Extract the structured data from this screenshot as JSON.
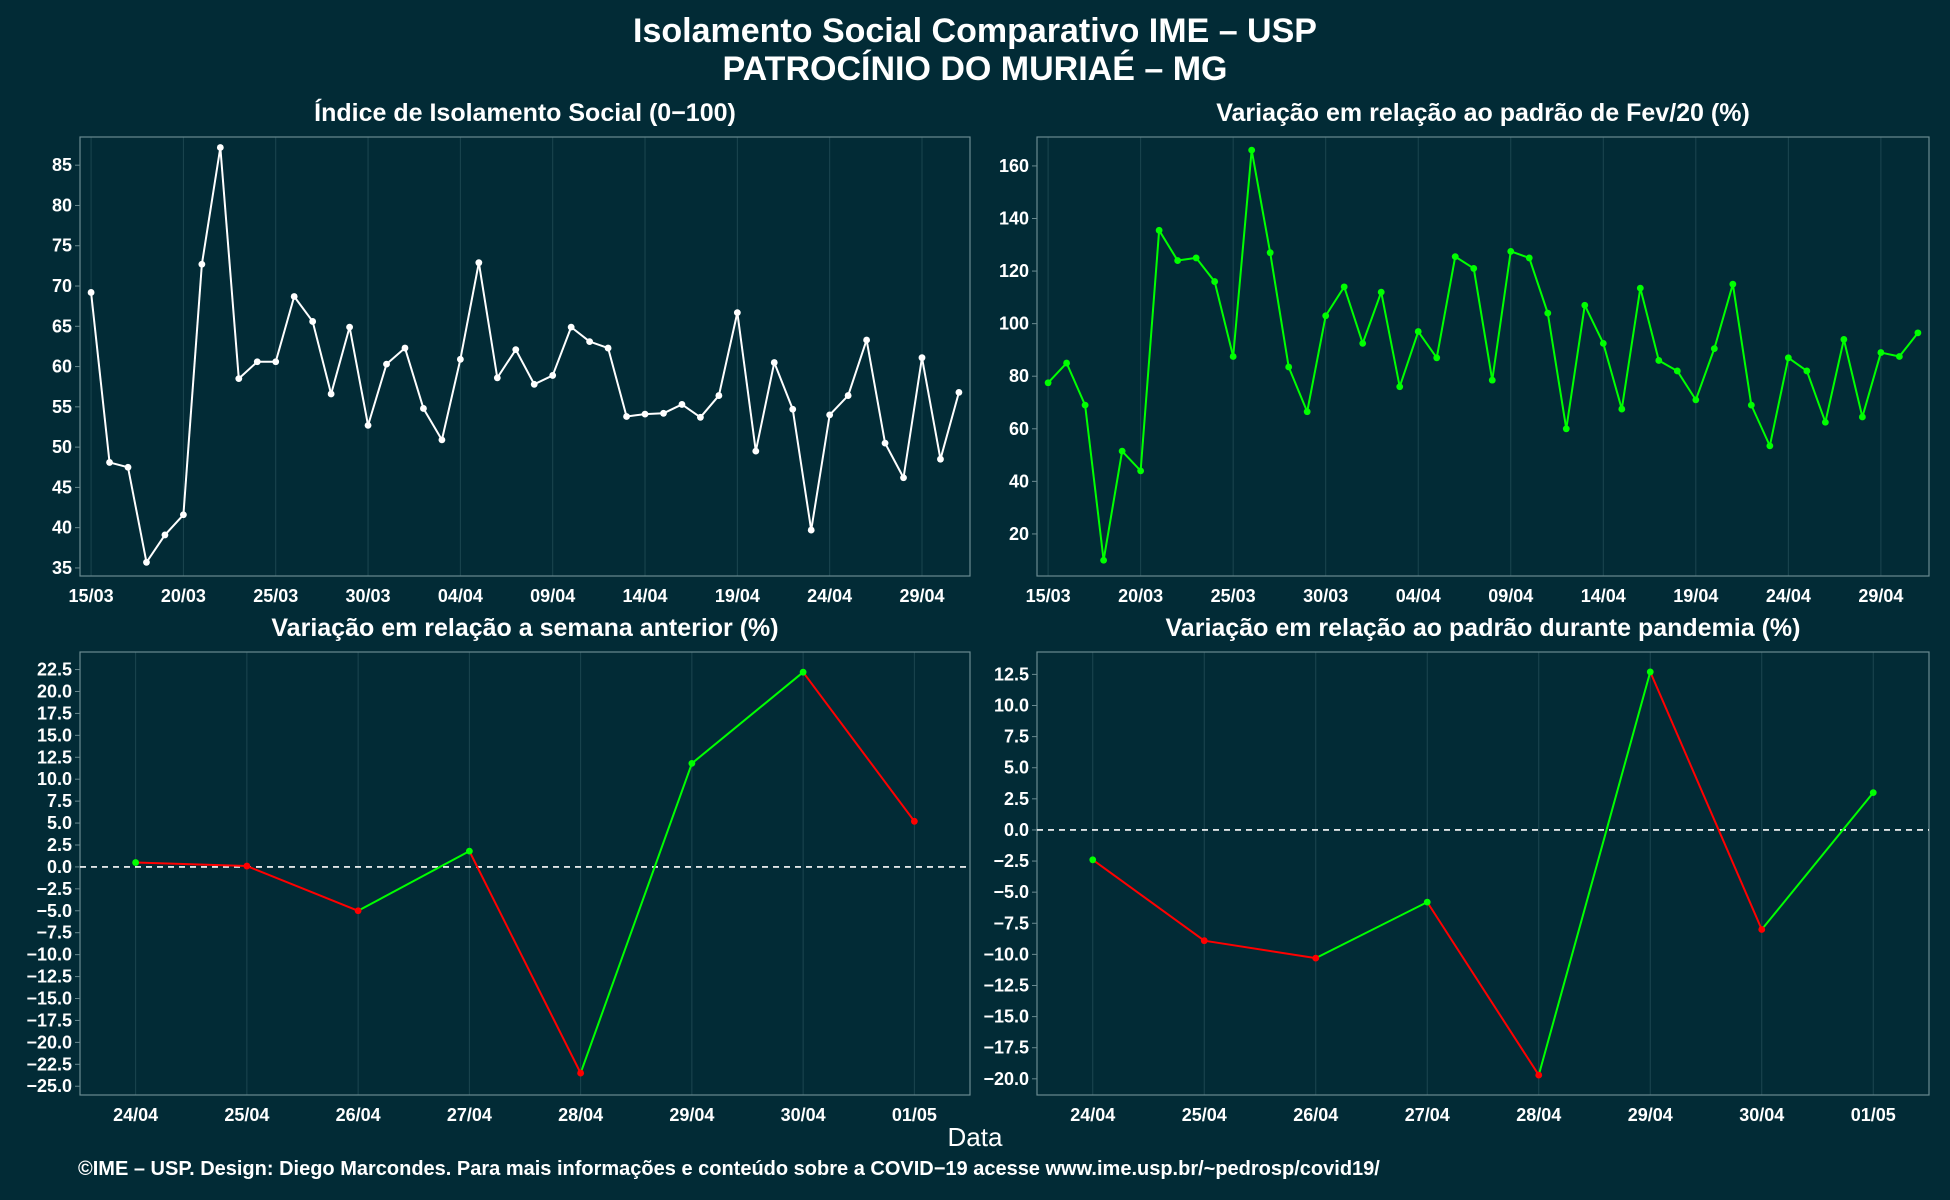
{
  "title_line1": "Isolamento Social Comparativo IME – USP",
  "title_line2": "PATROCÍNIO DO MURIAÉ – MG",
  "xlabel": "Data",
  "footer": "©IME – USP. Design: Diego Marcondes. Para mais informações e conteúdo sobre a COVID−19 acesse www.ime.usp.br/~pedrosp/covid19/",
  "colors": {
    "background": "#022b36",
    "white": "#ffffff",
    "green": "#00ff00",
    "red": "#ff0000"
  },
  "chart_data": [
    {
      "type": "line",
      "title": "Índice de Isolamento Social (0−100)",
      "x_start": "15/03",
      "x_tick_labels": [
        "15/03",
        "20/03",
        "25/03",
        "30/03",
        "04/04",
        "09/04",
        "14/04",
        "19/04",
        "24/04",
        "29/04"
      ],
      "y_ticks": [
        35,
        40,
        45,
        50,
        55,
        60,
        65,
        70,
        75,
        80,
        85
      ],
      "ylim": [
        34,
        88.5
      ],
      "color": "#ffffff",
      "values": [
        69.2,
        48.1,
        47.5,
        35.7,
        39.1,
        41.6,
        72.7,
        87.2,
        58.5,
        60.6,
        60.6,
        68.7,
        65.6,
        56.6,
        64.9,
        52.7,
        60.3,
        62.3,
        54.8,
        50.9,
        60.9,
        72.9,
        58.6,
        62.1,
        57.8,
        58.9,
        64.9,
        63.1,
        62.3,
        53.8,
        54.1,
        54.2,
        55.3,
        53.7,
        56.4,
        66.7,
        49.5,
        60.5,
        54.7,
        39.7,
        54.0,
        56.4,
        63.3,
        50.5,
        46.2,
        61.1,
        48.5,
        56.8
      ]
    },
    {
      "type": "line",
      "title": "Variação em relação ao padrão de Fev/20 (%)",
      "x_start": "15/03",
      "x_tick_labels": [
        "15/03",
        "20/03",
        "25/03",
        "30/03",
        "04/04",
        "09/04",
        "14/04",
        "19/04",
        "24/04",
        "29/04"
      ],
      "y_ticks": [
        20,
        40,
        60,
        80,
        100,
        120,
        140,
        160
      ],
      "ylim": [
        4,
        171
      ],
      "color": "#00ff00",
      "values": [
        77.5,
        85.0,
        69.0,
        10.0,
        51.5,
        44.0,
        135.5,
        124.0,
        125.0,
        116.0,
        87.5,
        166.0,
        127.0,
        83.5,
        66.5,
        103.0,
        114.0,
        92.5,
        112.0,
        76.0,
        97.0,
        87.0,
        125.5,
        121.0,
        78.5,
        127.5,
        125.0,
        104.0,
        60.0,
        107.0,
        92.5,
        67.5,
        113.5,
        86.0,
        82.0,
        71.0,
        90.5,
        115.0,
        69.0,
        53.5,
        87.0,
        82.0,
        62.5,
        94.0,
        64.5,
        89.0,
        87.5,
        96.5
      ]
    },
    {
      "type": "line",
      "title": "Variação em relação a semana anterior (%)",
      "x": [
        "24/04",
        "25/04",
        "26/04",
        "27/04",
        "28/04",
        "29/04",
        "30/04",
        "01/05"
      ],
      "y_ticks": [
        -25,
        -22.5,
        -20,
        -17.5,
        -15,
        -12.5,
        -10,
        -7.5,
        -5,
        -2.5,
        0,
        2.5,
        5,
        7.5,
        10,
        12.5,
        15,
        17.5,
        20,
        22.5
      ],
      "y_tick_labels": [
        "−25.0",
        "−22.5",
        "−20.0",
        "−17.5",
        "−15.0",
        "−12.5",
        "−10.0",
        "−7.5",
        "−5.0",
        "−2.5",
        "0.0",
        "2.5",
        "5.0",
        "7.5",
        "10.0",
        "12.5",
        "15.0",
        "17.5",
        "20.0",
        "22.5"
      ],
      "ylim": [
        -26,
        24.5
      ],
      "values": [
        0.5,
        0.1,
        -5.0,
        1.8,
        -23.5,
        11.8,
        22.2,
        5.2
      ],
      "rise_color": "#00ff00",
      "fall_color": "#ff0000",
      "reference_line": 0
    },
    {
      "type": "line",
      "title": "Variação em relação ao padrão durante pandemia (%)",
      "x": [
        "24/04",
        "25/04",
        "26/04",
        "27/04",
        "28/04",
        "29/04",
        "30/04",
        "01/05"
      ],
      "y_ticks": [
        -20,
        -17.5,
        -15,
        -12.5,
        -10,
        -7.5,
        -5,
        -2.5,
        0,
        2.5,
        5,
        7.5,
        10,
        12.5
      ],
      "y_tick_labels": [
        "−20.0",
        "−17.5",
        "−15.0",
        "−12.5",
        "−10.0",
        "−7.5",
        "−5.0",
        "−2.5",
        "0.0",
        "2.5",
        "5.0",
        "7.5",
        "10.0",
        "12.5"
      ],
      "ylim": [
        -21.3,
        14.3
      ],
      "values": [
        -2.4,
        -8.9,
        -10.3,
        -5.8,
        -19.7,
        12.7,
        -8.0,
        3.0
      ],
      "rise_color": "#00ff00",
      "fall_color": "#ff0000",
      "reference_line": 0
    }
  ]
}
